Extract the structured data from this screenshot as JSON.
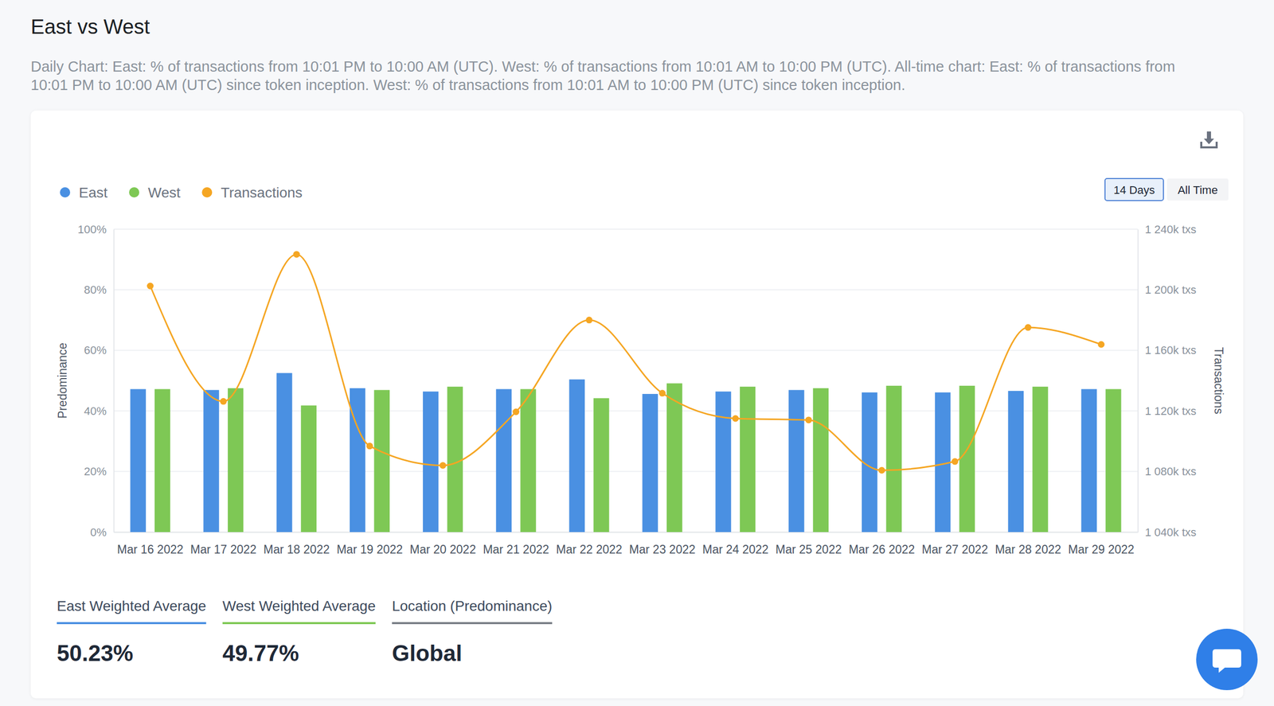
{
  "chart_data": {
    "type": "bar",
    "title": "East vs West",
    "subtitle": "Daily Chart: East: % of transactions from 10:01 PM to 10:00 AM (UTC). West: % of transactions from 10:01 AM to 10:00 PM (UTC). All-time chart: East: % of transactions from 10:01 PM to 10:00 AM (UTC) since token inception. West: % of transactions from 10:01 AM to 10:00 PM (UTC) since token inception.",
    "y_label": "Predominance",
    "y2_label": "Transactions",
    "categories": [
      "Mar 16 2022",
      "Mar 17 2022",
      "Mar 18 2022",
      "Mar 19 2022",
      "Mar 20 2022",
      "Mar 21 2022",
      "Mar 22 2022",
      "Mar 23 2022",
      "Mar 24 2022",
      "Mar 25 2022",
      "Mar 26 2022",
      "Mar 27 2022",
      "Mar 28 2022",
      "Mar 29 2022"
    ],
    "series": [
      {
        "name": "East",
        "color": "#4a90e2",
        "values": [
          47.2,
          46.9,
          52.5,
          47.5,
          46.4,
          47.2,
          50.4,
          45.6,
          46.4,
          46.9,
          46.1,
          46.1,
          46.6,
          47.2
        ]
      },
      {
        "name": "West",
        "color": "#7ec855",
        "values": [
          47.2,
          47.5,
          41.8,
          46.9,
          48.0,
          47.2,
          44.2,
          49.1,
          48.0,
          47.5,
          48.3,
          48.3,
          48.0,
          47.2
        ]
      },
      {
        "name": "Transactions",
        "type": "line",
        "axis": "y2",
        "color": "#f5a623",
        "marker": "circle",
        "values": [
          1202500,
          1126300,
          1223400,
          1096800,
          1084000,
          1119400,
          1180000,
          1131700,
          1115000,
          1114000,
          1080800,
          1086600,
          1175100,
          1163900
        ]
      }
    ],
    "ylim": [
      0,
      100
    ],
    "yticks": [
      {
        "value": 0,
        "label": "0%"
      },
      {
        "value": 20,
        "label": "20%"
      },
      {
        "value": 40,
        "label": "40%"
      },
      {
        "value": 60,
        "label": "60%"
      },
      {
        "value": 80,
        "label": "80%"
      },
      {
        "value": 100,
        "label": "100%"
      }
    ],
    "y2lim": [
      1040000,
      1240000
    ],
    "y2ticks": [
      {
        "value": 1040000,
        "label": "1 040k txs"
      },
      {
        "value": 1080000,
        "label": "1 080k txs"
      },
      {
        "value": 1120000,
        "label": "1 120k txs"
      },
      {
        "value": 1160000,
        "label": "1 160k txs"
      },
      {
        "value": 1200000,
        "label": "1 200k txs"
      },
      {
        "value": 1240000,
        "label": "1 240k txs"
      }
    ],
    "grid": true,
    "legend": "top-left"
  },
  "controls": {
    "buttons": [
      "14 Days",
      "All Time"
    ],
    "active": "14 Days"
  },
  "summary": [
    {
      "label": "East Weighted Average",
      "value": "50.23%"
    },
    {
      "label": "West Weighted Average",
      "value": "49.77%"
    },
    {
      "label": "Location (Predominance)",
      "value": "Global"
    }
  ]
}
